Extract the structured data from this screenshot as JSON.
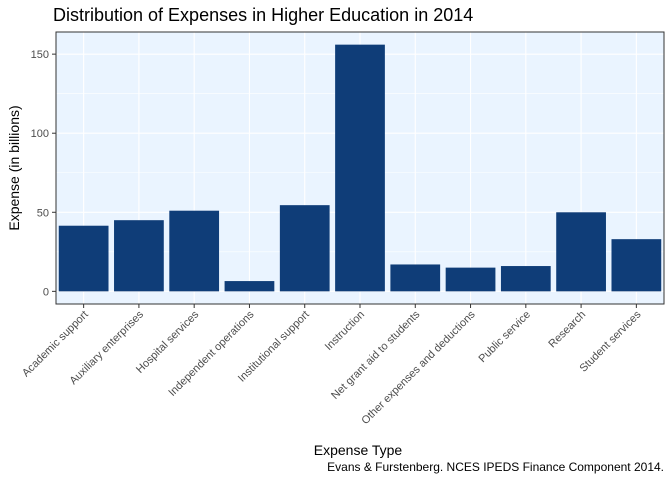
{
  "chart_data": {
    "type": "bar",
    "title": "Distribution of Expenses in Higher Education in 2014",
    "xlabel": "Expense Type",
    "ylabel": "Expense (in billions)",
    "caption": "Evans & Furstenberg. NCES IPEDS Finance Component 2014.",
    "categories": [
      "Academic support",
      "Auxiliary enterprises",
      "Hospital services",
      "Independent operations",
      "Institutional support",
      "Instruction",
      "Net grant aid to students",
      "Other expenses and deductions",
      "Public service",
      "Research",
      "Student services"
    ],
    "values": [
      41.5,
      45,
      51,
      6.5,
      54.5,
      156,
      17,
      15,
      16,
      50,
      33
    ],
    "ylim": [
      -8,
      164
    ],
    "yticks": [
      0,
      50,
      100,
      150
    ],
    "grid": true,
    "legend": "none",
    "colors": {
      "bar": "#0f3d78",
      "panel_background": "#eaf4ff",
      "grid": "#ffffff",
      "panel_border": "#333333"
    }
  }
}
